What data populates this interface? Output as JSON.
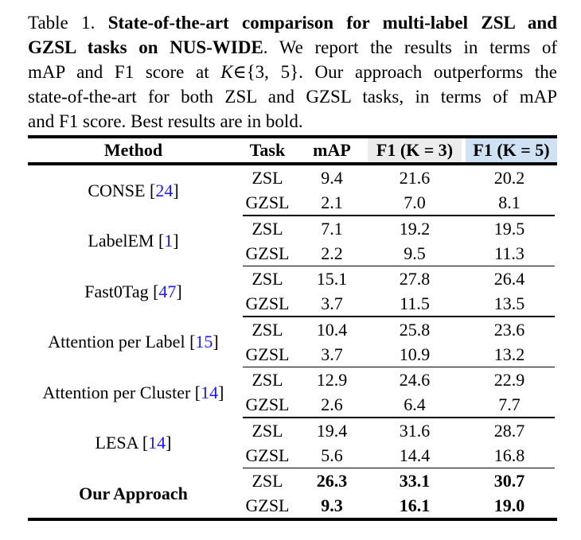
{
  "caption": {
    "lines": [
      [
        {
          "t": "Table 1. ",
          "s": "n"
        },
        {
          "t": "State-of-the-art comparison for multi-label ZSL and",
          "s": "b"
        }
      ],
      [
        {
          "t": "GZSL tasks on NUS-WIDE",
          "s": "b"
        },
        {
          "t": ". We report the results in terms of",
          "s": "n"
        }
      ],
      [
        {
          "t": "mAP and F1 score at ",
          "s": "n"
        },
        {
          "t": "K",
          "s": "i"
        },
        {
          "t": "∈{3, 5}",
          "s": "n"
        },
        {
          "t": ". Our approach outperforms the",
          "s": "n"
        }
      ],
      [
        {
          "t": "state-of-the-art for both ZSL and GZSL tasks, in terms of mAP",
          "s": "n"
        }
      ],
      [
        {
          "t": "and F1 score. Best results are in bold.",
          "s": "n"
        }
      ]
    ]
  },
  "table": {
    "columns": [
      "Method",
      "Task",
      "mAP",
      "F1 (K = 3)",
      "F1 (K = 5)"
    ],
    "header_colors": {
      "f1k3_bg": "#ececec",
      "f1k5_bg": "#cfe2f4"
    },
    "citation_color": "#1a1aff",
    "groups": [
      {
        "method": "CONSE",
        "citation": "24",
        "emphasis": false,
        "rows": [
          [
            "ZSL",
            "9.4",
            "21.6",
            "20.2"
          ],
          [
            "GZSL",
            "2.1",
            "7.0",
            "8.1"
          ]
        ]
      },
      {
        "method": "LabelEM",
        "citation": "1",
        "emphasis": false,
        "rows": [
          [
            "ZSL",
            "7.1",
            "19.2",
            "19.5"
          ],
          [
            "GZSL",
            "2.2",
            "9.5",
            "11.3"
          ]
        ]
      },
      {
        "method": "Fast0Tag",
        "citation": "47",
        "emphasis": false,
        "rows": [
          [
            "ZSL",
            "15.1",
            "27.8",
            "26.4"
          ],
          [
            "GZSL",
            "3.7",
            "11.5",
            "13.5"
          ]
        ]
      },
      {
        "method": "Attention per Label",
        "citation": "15",
        "emphasis": false,
        "rows": [
          [
            "ZSL",
            "10.4",
            "25.8",
            "23.6"
          ],
          [
            "GZSL",
            "3.7",
            "10.9",
            "13.2"
          ]
        ]
      },
      {
        "method": "Attention per Cluster",
        "citation": "14",
        "emphasis": false,
        "rows": [
          [
            "ZSL",
            "12.9",
            "24.6",
            "22.9"
          ],
          [
            "GZSL",
            "2.6",
            "6.4",
            "7.7"
          ]
        ]
      },
      {
        "method": "LESA",
        "citation": "14",
        "emphasis": false,
        "rows": [
          [
            "ZSL",
            "19.4",
            "31.6",
            "28.7"
          ],
          [
            "GZSL",
            "5.6",
            "14.4",
            "16.8"
          ]
        ]
      },
      {
        "method": "Our Approach",
        "citation": null,
        "emphasis": true,
        "rows": [
          [
            "ZSL",
            "26.3",
            "33.1",
            "30.7"
          ],
          [
            "GZSL",
            "9.3",
            "16.1",
            "19.0"
          ]
        ]
      }
    ]
  }
}
